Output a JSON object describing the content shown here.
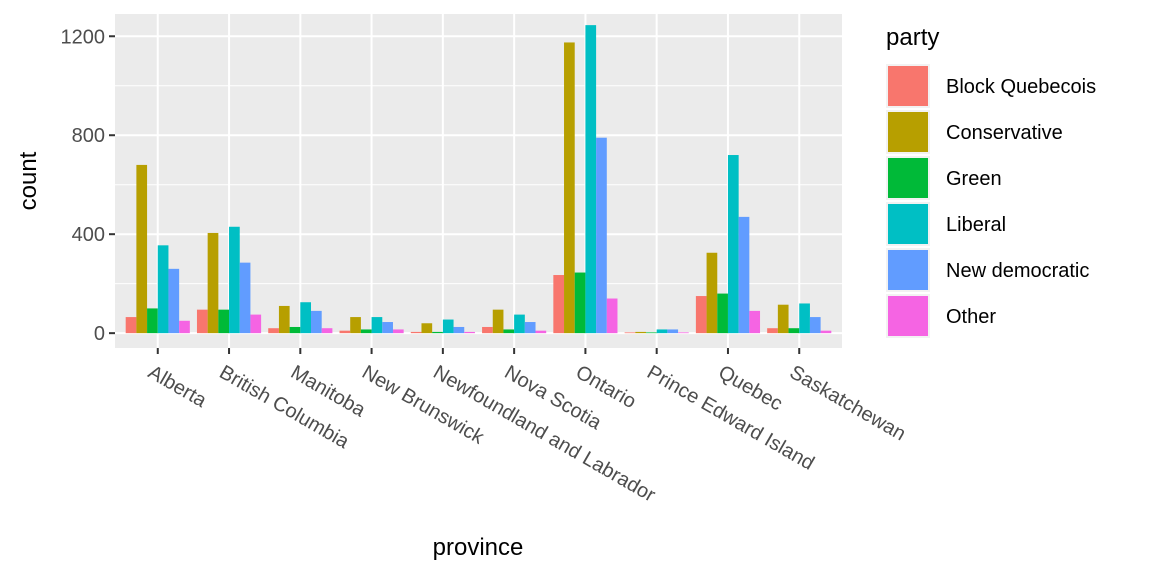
{
  "chart_data": {
    "type": "bar",
    "xlabel": "province",
    "ylabel": "count",
    "ylim": [
      -60,
      1290
    ],
    "yticks": [
      0,
      400,
      800,
      1200
    ],
    "grid": true,
    "legend_position": "right",
    "legend_title": "party",
    "categories": [
      "Alberta",
      "British Columbia",
      "Manitoba",
      "New Brunswick",
      "Newfoundland and Labrador",
      "Nova Scotia",
      "Ontario",
      "Prince Edward Island",
      "Quebec",
      "Saskatchewan"
    ],
    "series": [
      {
        "name": "Block Quebecois",
        "color": "#F8766D",
        "values": [
          65,
          95,
          20,
          10,
          5,
          25,
          235,
          3,
          150,
          20
        ]
      },
      {
        "name": "Conservative",
        "color": "#B79F00",
        "values": [
          680,
          405,
          110,
          65,
          40,
          95,
          1175,
          5,
          325,
          115
        ]
      },
      {
        "name": "Green",
        "color": "#00BA38",
        "values": [
          100,
          95,
          25,
          15,
          5,
          15,
          245,
          3,
          160,
          20
        ]
      },
      {
        "name": "Liberal",
        "color": "#00BFC4",
        "values": [
          355,
          430,
          125,
          65,
          55,
          75,
          1245,
          15,
          720,
          120
        ]
      },
      {
        "name": "New democratic",
        "color": "#619CFF",
        "values": [
          260,
          285,
          90,
          45,
          25,
          45,
          790,
          15,
          470,
          65
        ]
      },
      {
        "name": "Other",
        "color": "#F564E3",
        "values": [
          50,
          75,
          20,
          15,
          5,
          10,
          140,
          3,
          90,
          10
        ]
      }
    ]
  }
}
